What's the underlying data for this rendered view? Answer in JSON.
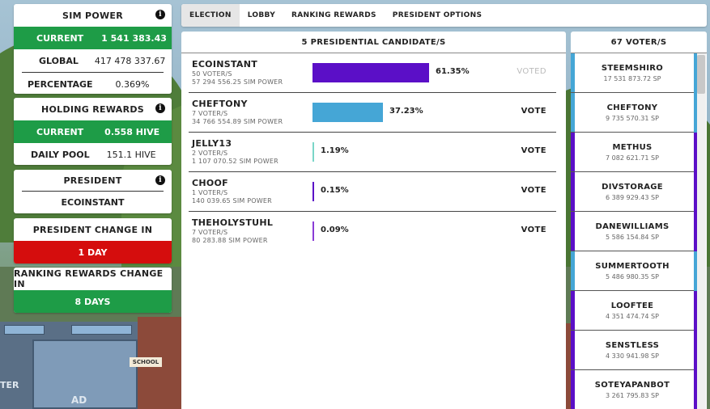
{
  "sim_power": {
    "title": "SIM POWER",
    "current_label": "CURRENT",
    "current_value": "1 541 383.43",
    "global_label": "GLOBAL",
    "global_value": "417 478 337.67",
    "percentage_label": "PERCENTAGE",
    "percentage_value": "0.369%"
  },
  "holding_rewards": {
    "title": "HOLDING REWARDS",
    "current_label": "CURRENT",
    "current_value": "0.558 HIVE",
    "daily_pool_label": "DAILY POOL",
    "daily_pool_value": "151.1 HIVE"
  },
  "president": {
    "title": "PRESIDENT",
    "name": "ECOINSTANT"
  },
  "president_change": {
    "title": "PRESIDENT CHANGE IN",
    "value": "1 DAY"
  },
  "ranking_change": {
    "title": "RANKING REWARDS CHANGE IN",
    "value": "8 DAYS"
  },
  "tabs": [
    "ELECTION",
    "LOBBY",
    "RANKING REWARDS",
    "PRESIDENT OPTIONS"
  ],
  "candidates_title": "5 PRESIDENTIAL CANDIDATE/S",
  "candidates": [
    {
      "name": "ECOINSTANT",
      "voters": "50 VOTER/S",
      "power": "57 294 556.25 SIM POWER",
      "pct": "61.35%",
      "share": 61.35,
      "color": "#5b0fc7",
      "action": "VOTED"
    },
    {
      "name": "CHEFTONY",
      "voters": "7 VOTER/S",
      "power": "34 766 554.89 SIM POWER",
      "pct": "37.23%",
      "share": 37.23,
      "color": "#45a6d6",
      "action": "VOTE"
    },
    {
      "name": "JELLY13",
      "voters": "2 VOTER/S",
      "power": "1 107 070.52 SIM POWER",
      "pct": "1.19%",
      "share": 1.19,
      "color": "#7ad6c8",
      "action": "VOTE"
    },
    {
      "name": "CHOOF",
      "voters": "1 VOTER/S",
      "power": "140 039.65 SIM POWER",
      "pct": "0.15%",
      "share": 0.15,
      "color": "#5b0fc7",
      "action": "VOTE"
    },
    {
      "name": "THEHOLYSTUHL",
      "voters": "7 VOTER/S",
      "power": "80 283.88 SIM POWER",
      "pct": "0.09%",
      "share": 0.09,
      "color": "#8a3cd6",
      "action": "VOTE"
    }
  ],
  "voters_title": "67 VOTER/S",
  "voters": [
    {
      "name": "STEEMSHIRO",
      "power": "17 531 873.72 SP",
      "color": "#45a6d6"
    },
    {
      "name": "CHEFTONY",
      "power": "9 735 570.31 SP",
      "color": "#45a6d6"
    },
    {
      "name": "METHUS",
      "power": "7 082 621.71 SP",
      "color": "#5b0fc7"
    },
    {
      "name": "DIVSTORAGE",
      "power": "6 389 929.43 SP",
      "color": "#5b0fc7"
    },
    {
      "name": "DANEWILLIAMS",
      "power": "5 586 154.84 SP",
      "color": "#5b0fc7"
    },
    {
      "name": "SUMMERTOOTH",
      "power": "5 486 980.35 SP",
      "color": "#45a6d6"
    },
    {
      "name": "LOOFTEE",
      "power": "4 351 474.74 SP",
      "color": "#5b0fc7"
    },
    {
      "name": "SENSTLESS",
      "power": "4 330 941.98 SP",
      "color": "#5b0fc7"
    },
    {
      "name": "SOTEYAPANBOT",
      "power": "3 261 795.83 SP",
      "color": "#5b0fc7"
    }
  ],
  "background": {
    "school_sign": "SCHOOL",
    "sign_left": "TER",
    "sign_ad": "AD"
  }
}
